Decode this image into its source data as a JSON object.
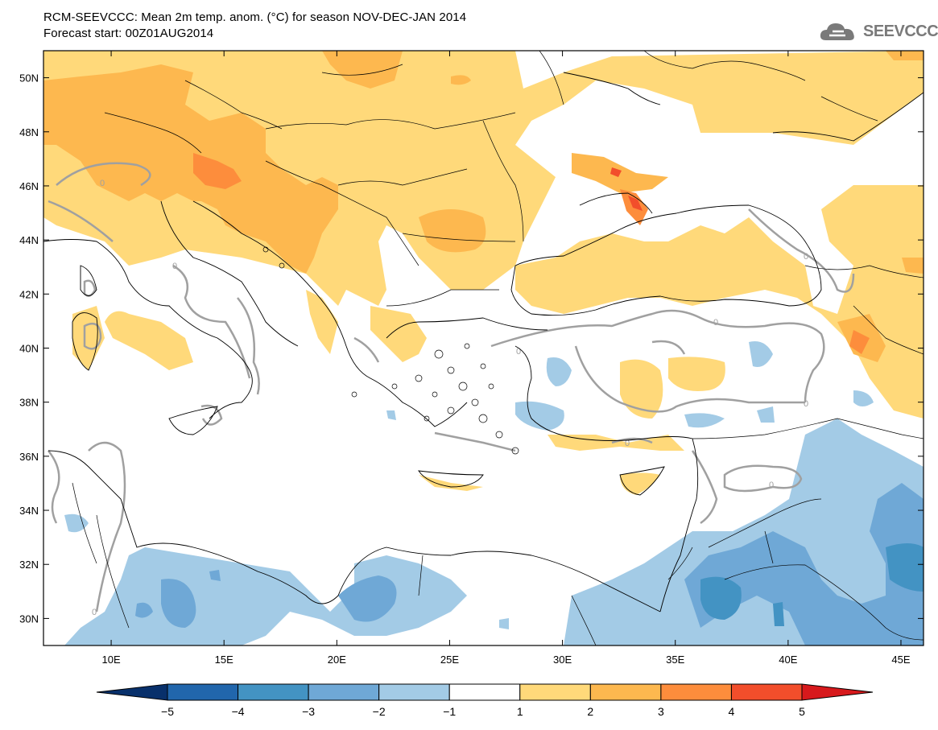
{
  "header": {
    "line1": "RCM-SEEVCCC: Mean 2m temp. anom. (°C) for season NOV-DEC-JAN 2014",
    "line2": "Forecast start: 00Z01AUG2014",
    "logo_text": "SEEVCCC"
  },
  "map": {
    "lon_range": [
      7,
      46
    ],
    "lat_range": [
      29,
      51
    ],
    "lon_ticks": [
      {
        "value": 10,
        "label": "10E"
      },
      {
        "value": 15,
        "label": "15E"
      },
      {
        "value": 20,
        "label": "20E"
      },
      {
        "value": 25,
        "label": "25E"
      },
      {
        "value": 30,
        "label": "30E"
      },
      {
        "value": 35,
        "label": "35E"
      },
      {
        "value": 40,
        "label": "40E"
      },
      {
        "value": 45,
        "label": "45E"
      }
    ],
    "lat_ticks": [
      {
        "value": 30,
        "label": "30N"
      },
      {
        "value": 32,
        "label": "32N"
      },
      {
        "value": 34,
        "label": "34N"
      },
      {
        "value": 36,
        "label": "36N"
      },
      {
        "value": 38,
        "label": "38N"
      },
      {
        "value": 40,
        "label": "40N"
      },
      {
        "value": 42,
        "label": "42N"
      },
      {
        "value": 44,
        "label": "44N"
      },
      {
        "value": 46,
        "label": "46N"
      },
      {
        "value": 48,
        "label": "48N"
      },
      {
        "value": 50,
        "label": "50N"
      }
    ],
    "zero_contour_label": "0"
  },
  "colorbar": {
    "labels": [
      "−5",
      "−4",
      "−3",
      "−2",
      "−1",
      "1",
      "2",
      "3",
      "4",
      "5"
    ],
    "colors": [
      "#2166ac",
      "#4393c3",
      "#6fa8d6",
      "#a3cbe6",
      "#ffffff",
      "#ffd97a",
      "#fdb84f",
      "#fd8d3c",
      "#f24e2b"
    ],
    "low_cap_color": "#08306b",
    "high_cap_color": "#d7191c"
  },
  "colors": {
    "anom_1_2": "#ffd97a",
    "anom_2_3": "#fdb84f",
    "anom_3_4": "#fd8d3c",
    "anom_4_5": "#f24e2b",
    "anom_m1_m2": "#a3cbe6",
    "anom_m2_m3": "#6fa8d6",
    "anom_m3_m4": "#4393c3",
    "zero_contour": "#a0a0a0",
    "coast": "#000000"
  }
}
